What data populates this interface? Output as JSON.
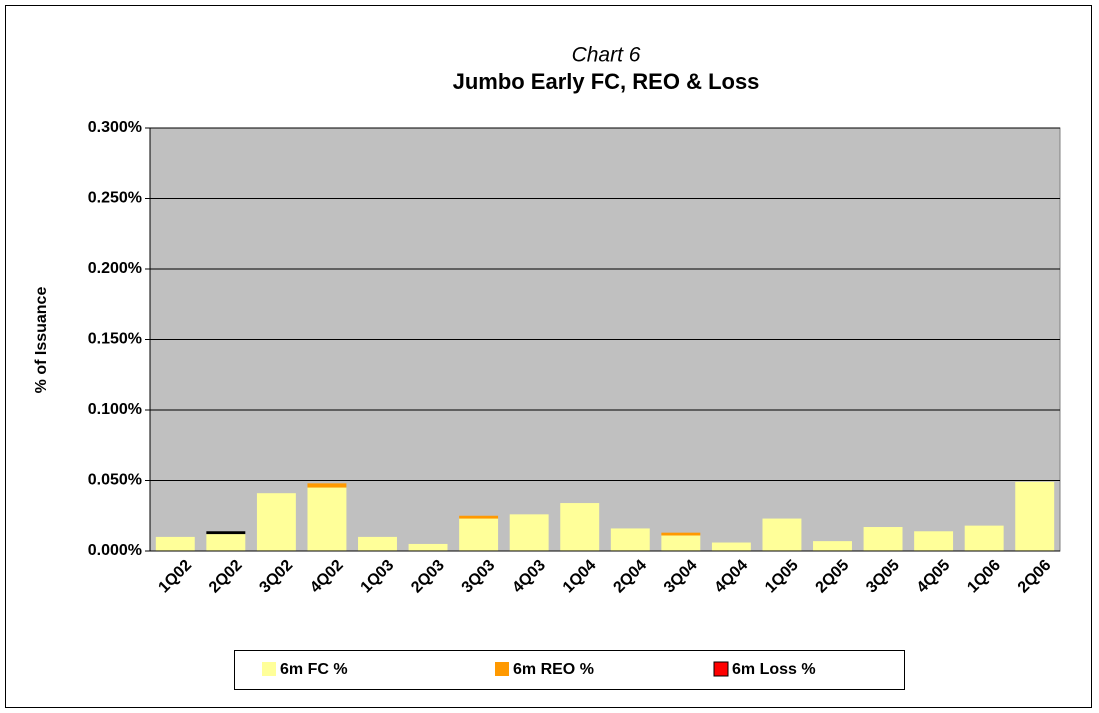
{
  "chart_data": {
    "type": "stacked_bar",
    "subtitle": "Chart 6",
    "title": "Jumbo Early FC, REO & Loss",
    "y_label": "% of Issuance",
    "categories": [
      "1Q02",
      "2Q02",
      "3Q02",
      "4Q02",
      "1Q03",
      "2Q03",
      "3Q03",
      "4Q03",
      "1Q04",
      "2Q04",
      "3Q04",
      "4Q04",
      "1Q05",
      "2Q05",
      "3Q05",
      "4Q05",
      "1Q06",
      "2Q06"
    ],
    "series": [
      {
        "name": "6m FC %",
        "color": "#ffff99",
        "values": [
          0.01,
          0.012,
          0.041,
          0.045,
          0.01,
          0.005,
          0.023,
          0.026,
          0.034,
          0.016,
          0.011,
          0.006,
          0.023,
          0.007,
          0.017,
          0.014,
          0.018,
          0.049
        ]
      },
      {
        "name": "6m REO %",
        "color": "#ff9900",
        "values": [
          0,
          0,
          0,
          0.003,
          0,
          0,
          0.002,
          0,
          0,
          0,
          0.002,
          0,
          0,
          0,
          0,
          0,
          0,
          0
        ]
      },
      {
        "name": "6m Loss %",
        "color": "#ff0000",
        "values": [
          0,
          0.002,
          0,
          0,
          0,
          0,
          0,
          0,
          0,
          0,
          0,
          0,
          0,
          0,
          0,
          0,
          0,
          0
        ]
      }
    ],
    "ylim": [
      0,
      0.3
    ],
    "yticks": [
      {
        "value": 0,
        "label": "0.000%"
      },
      {
        "value": 0.05,
        "label": "0.050%"
      },
      {
        "value": 0.1,
        "label": "0.100%"
      },
      {
        "value": 0.15,
        "label": "0.150%"
      },
      {
        "value": 0.2,
        "label": "0.200%"
      },
      {
        "value": 0.25,
        "label": "0.250%"
      },
      {
        "value": 0.3,
        "label": "0.300%"
      }
    ],
    "grid": true,
    "legend": "bottom"
  }
}
